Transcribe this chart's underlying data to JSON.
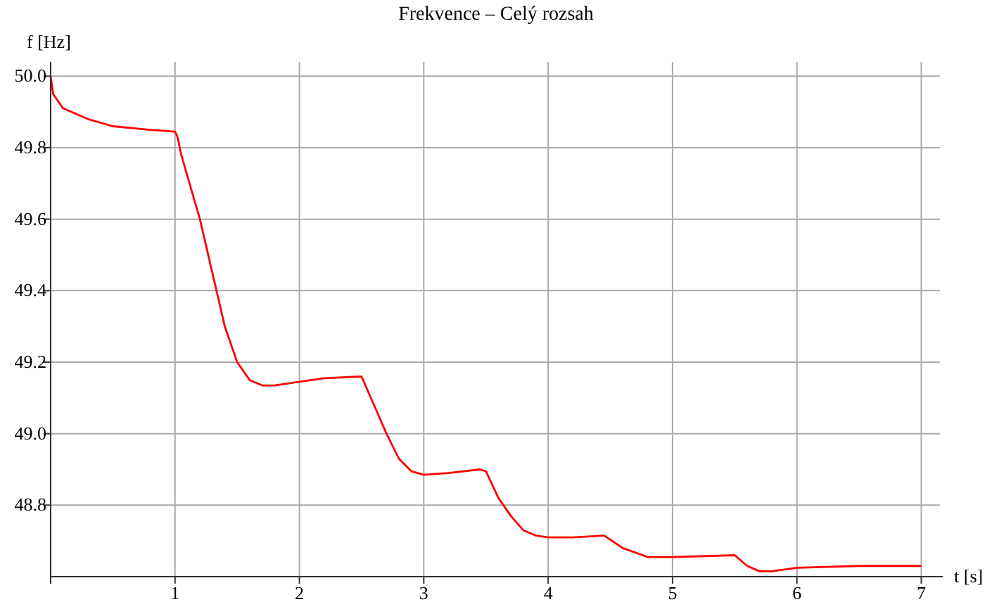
{
  "chart_data": {
    "type": "line",
    "title": "Frekvence – Celý rozsah",
    "xlabel": "t [s]",
    "ylabel": "f [Hz]",
    "x": [
      0,
      0.02,
      0.1,
      0.3,
      0.5,
      0.8,
      1.0,
      1.02,
      1.05,
      1.2,
      1.3,
      1.4,
      1.5,
      1.6,
      1.7,
      1.8,
      2.0,
      2.2,
      2.5,
      2.6,
      2.7,
      2.8,
      2.9,
      3.0,
      3.2,
      3.45,
      3.5,
      3.6,
      3.7,
      3.8,
      3.9,
      4.0,
      4.2,
      4.45,
      4.6,
      4.8,
      5.0,
      5.5,
      5.6,
      5.7,
      5.8,
      6.0,
      6.5,
      7.0
    ],
    "series": [
      {
        "color": "#ff0000",
        "values": [
          50.0,
          49.95,
          49.91,
          49.88,
          49.86,
          49.85,
          49.845,
          49.83,
          49.78,
          49.6,
          49.45,
          49.3,
          49.2,
          49.15,
          49.135,
          49.135,
          49.145,
          49.155,
          49.16,
          49.08,
          49.0,
          48.93,
          48.895,
          48.885,
          48.89,
          48.9,
          48.895,
          48.82,
          48.77,
          48.73,
          48.715,
          48.71,
          48.71,
          48.715,
          48.68,
          48.655,
          48.655,
          48.66,
          48.63,
          48.615,
          48.615,
          48.625,
          48.63,
          48.63
        ]
      }
    ],
    "xlim": [
      0,
      7.15
    ],
    "ylim": [
      48.6,
      50.04
    ],
    "xticks": [
      {
        "value": 0,
        "label": null
      },
      1,
      2,
      3,
      4,
      5,
      6,
      7
    ],
    "yticks": [
      {
        "value": 48.8,
        "label": "48.8"
      },
      {
        "value": 49.0,
        "label": "49.0"
      },
      {
        "value": 49.2,
        "label": "49.2"
      },
      {
        "value": 49.4,
        "label": "49.4"
      },
      {
        "value": 49.6,
        "label": "49.6"
      },
      {
        "value": 49.8,
        "label": "49.8"
      },
      {
        "value": 50.0,
        "label": "50.0"
      }
    ],
    "grid": true,
    "marker": "none",
    "line_style": "solid"
  }
}
